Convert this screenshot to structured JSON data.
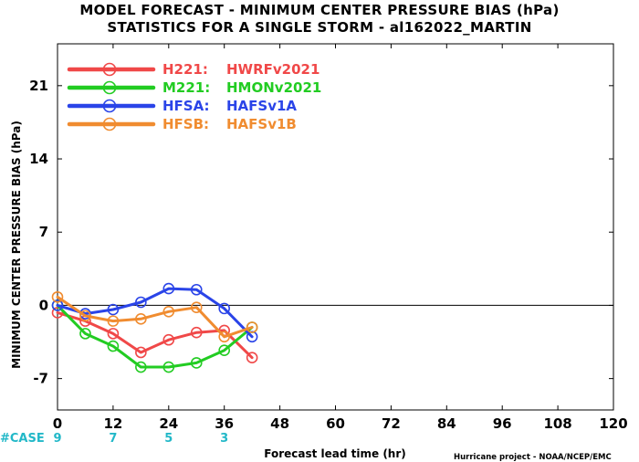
{
  "chart_data": {
    "type": "line",
    "title": "MODEL FORECAST - MINIMUM CENTER PRESSURE BIAS (hPa)",
    "subtitle": "STATISTICS FOR A SINGLE STORM - al162022_MARTIN",
    "xlabel": "Forecast lead time (hr)",
    "ylabel": "MINIMUM CENTER PRESSURE BIAS (hPa)",
    "xlim": [
      0,
      120
    ],
    "ylim": [
      -10,
      25
    ],
    "xticks": [
      0,
      12,
      24,
      36,
      48,
      60,
      72,
      84,
      96,
      108,
      120
    ],
    "yticks": [
      -7,
      0,
      7,
      14,
      21
    ],
    "zero_line": true,
    "legend_position": "top-left",
    "case_label": "#CASE",
    "case_x": [
      0,
      12,
      24,
      36
    ],
    "case_values": [
      "9",
      "7",
      "5",
      "3"
    ],
    "credit": "Hurricane project - NOAA/NCEP/EMC",
    "series": [
      {
        "code": "H221:",
        "name": "HWRFv2021",
        "color": "#f04848",
        "x": [
          0,
          6,
          12,
          18,
          24,
          30,
          36,
          42
        ],
        "y": [
          -0.7,
          -1.5,
          -2.7,
          -4.5,
          -3.3,
          -2.6,
          -2.4,
          -5.0
        ]
      },
      {
        "code": "M221:",
        "name": "HMONv2021",
        "color": "#22cc22",
        "x": [
          0,
          6,
          12,
          18,
          24,
          30,
          36,
          42
        ],
        "y": [
          0.0,
          -2.7,
          -3.9,
          -5.9,
          -5.9,
          -5.5,
          -4.3,
          -2.1
        ]
      },
      {
        "code": "HFSA:",
        "name": "HAFSv1A",
        "color": "#2a44e8",
        "x": [
          0,
          6,
          12,
          18,
          24,
          30,
          36,
          42
        ],
        "y": [
          0.0,
          -0.8,
          -0.4,
          0.3,
          1.6,
          1.5,
          -0.3,
          -3.0
        ]
      },
      {
        "code": "HFSB:",
        "name": "HAFSv1B",
        "color": "#f08c30",
        "x": [
          0,
          6,
          12,
          18,
          24,
          30,
          42,
          36
        ],
        "y": [
          0.8,
          -1.0,
          -1.5,
          -1.3,
          -0.6,
          -0.2,
          -2.1,
          -3.0
        ]
      }
    ]
  }
}
